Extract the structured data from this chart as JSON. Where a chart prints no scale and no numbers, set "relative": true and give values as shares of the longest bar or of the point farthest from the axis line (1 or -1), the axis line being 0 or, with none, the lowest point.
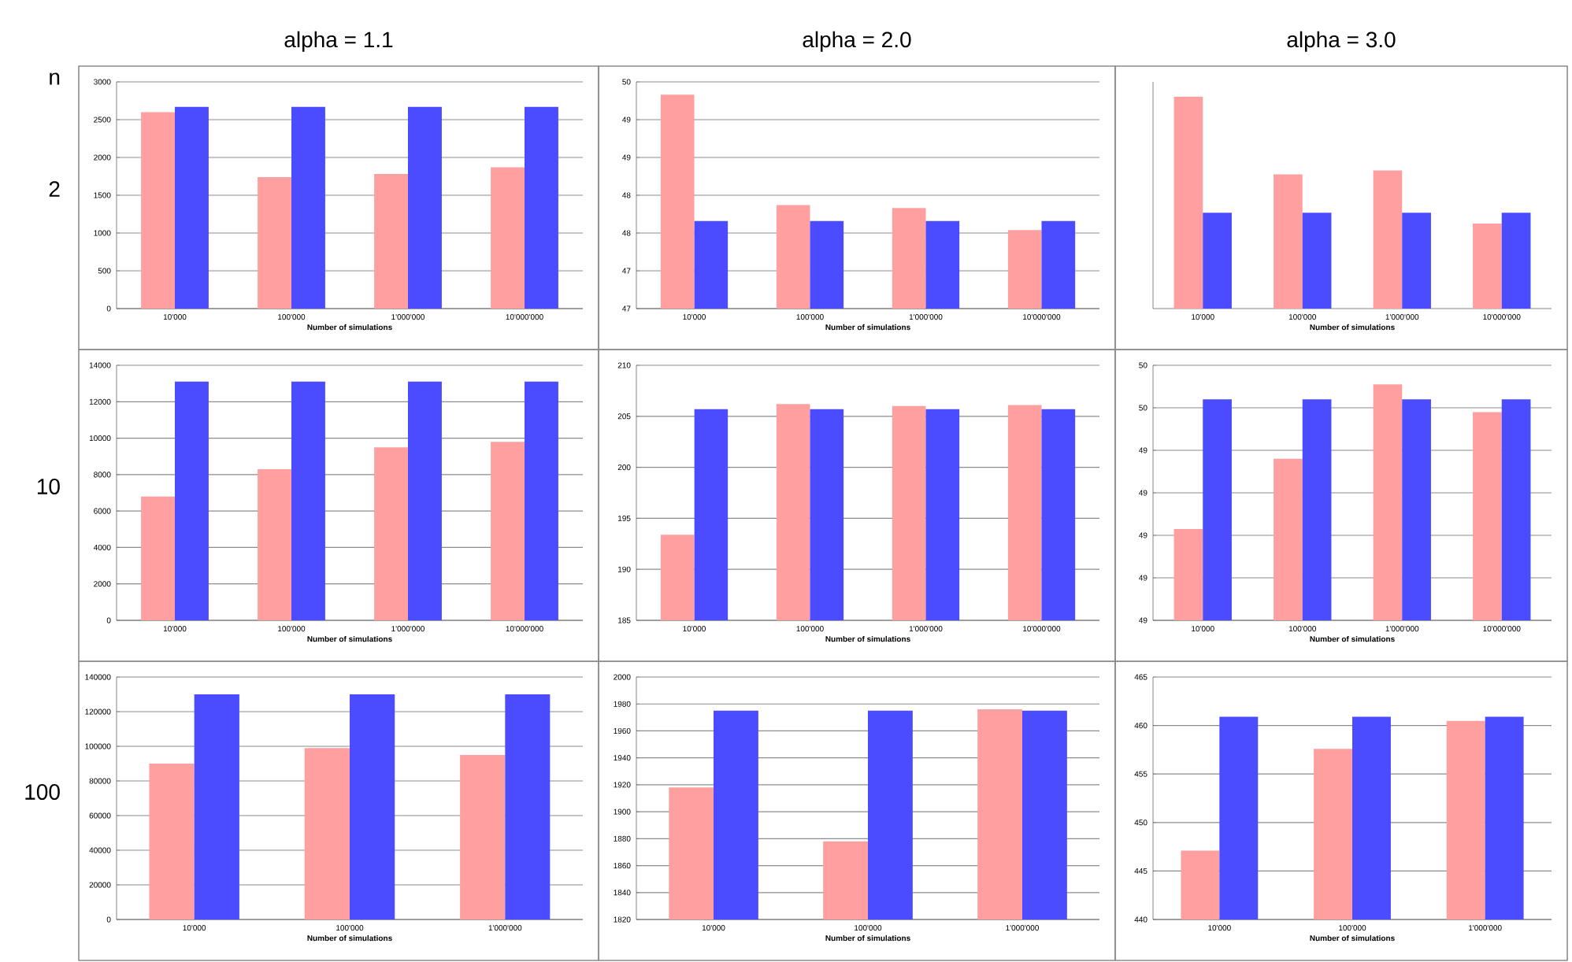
{
  "chart_data": [
    {
      "type": "bar",
      "title": "alpha = 1.1",
      "annotations": [
        "n",
        "2"
      ],
      "xlabel": "Number of simulations",
      "categories": [
        "10'000",
        "100'000",
        "1'000'000",
        "10'000'000"
      ],
      "grid": "y",
      "series": [
        {
          "color": "#ff9f9f",
          "values": [
            2600,
            1740,
            1780,
            1870
          ]
        },
        {
          "color": "#4b4bff",
          "values": [
            2670,
            2670,
            2670,
            2670
          ]
        }
      ],
      "ylim": [
        0,
        3000
      ],
      "yticks": [
        0,
        500,
        1000,
        1500,
        2000,
        2500,
        3000
      ]
    },
    {
      "type": "bar",
      "title": "alpha = 2.0",
      "xlabel": "Number of simulations",
      "categories": [
        "10'000",
        "100'000",
        "1'000'000",
        "10'000'000"
      ],
      "grid": "y",
      "series": [
        {
          "color": "#ff9f9f",
          "values": [
            49.83,
            48.37,
            48.33,
            48.04
          ]
        },
        {
          "color": "#4b4bff",
          "values": [
            48.16,
            48.16,
            48.16,
            48.16
          ]
        }
      ],
      "ylim": [
        47,
        50
      ],
      "yticks": [
        47,
        {
          "value": 47.5,
          "label": "47"
        },
        48,
        {
          "value": 48.5,
          "label": "48"
        },
        49,
        {
          "value": 49.5,
          "label": "49"
        },
        50
      ]
    },
    {
      "type": "bar",
      "title": "alpha = 3.0",
      "xlabel": "Number of simulations",
      "categories": [
        "10'000",
        "100'000",
        "1'000'000",
        "10'000'000"
      ],
      "relative": true,
      "series": [
        {
          "color": "#ff9f9f",
          "values": [
            1,
            0.633,
            0.652,
            0.401
          ]
        },
        {
          "color": "#4b4bff",
          "values": [
            0.452,
            0.452,
            0.452,
            0.452
          ]
        }
      ]
    },
    {
      "type": "bar",
      "annotations": [
        "10"
      ],
      "xlabel": "Number of simulations",
      "categories": [
        "10'000",
        "100'000",
        "1'000'000",
        "10'000'000"
      ],
      "grid": "y",
      "series": [
        {
          "color": "#ff9f9f",
          "values": [
            6800,
            8300,
            9500,
            9800
          ]
        },
        {
          "color": "#4b4bff",
          "values": [
            13100,
            13100,
            13100,
            13100
          ]
        }
      ],
      "ylim": [
        0,
        14000
      ],
      "yticks": [
        0,
        2000,
        4000,
        6000,
        8000,
        10000,
        12000,
        14000
      ]
    },
    {
      "type": "bar",
      "xlabel": "Number of simulations",
      "categories": [
        "10'000",
        "100'000",
        "1'000'000",
        "10'000'000"
      ],
      "grid": "y",
      "series": [
        {
          "color": "#ff9f9f",
          "values": [
            193.4,
            206.2,
            206.0,
            206.1
          ]
        },
        {
          "color": "#4b4bff",
          "values": [
            205.7,
            205.7,
            205.7,
            205.7
          ]
        }
      ],
      "ylim": [
        185,
        210
      ],
      "yticks": [
        185,
        190,
        195,
        200,
        205,
        210
      ]
    },
    {
      "type": "bar",
      "xlabel": "Number of simulations",
      "categories": [
        "10'000",
        "100'000",
        "1'000'000",
        "10'000'000"
      ],
      "grid": "y",
      "series": [
        {
          "color": "#ff9f9f",
          "values": [
            49.03,
            49.36,
            49.71,
            49.58
          ]
        },
        {
          "color": "#4b4bff",
          "values": [
            49.64,
            49.64,
            49.64,
            49.64
          ]
        }
      ],
      "ylim": [
        48.6,
        49.8
      ],
      "yticks": [
        {
          "value": 48.6,
          "label": "49"
        },
        {
          "value": 48.8,
          "label": "49"
        },
        49,
        {
          "value": 49.2,
          "label": "49"
        },
        {
          "value": 49.4,
          "label": "49"
        },
        {
          "value": 49.6,
          "label": "50"
        },
        {
          "value": 49.8,
          "label": "50"
        }
      ]
    },
    {
      "type": "bar",
      "annotations": [
        "100"
      ],
      "xlabel": "Number of simulations",
      "categories": [
        "10'000",
        "100'000",
        "1'000'000"
      ],
      "grid": "y",
      "series": [
        {
          "color": "#ff9f9f",
          "values": [
            90000,
            99000,
            95000
          ]
        },
        {
          "color": "#4b4bff",
          "values": [
            130000,
            130000,
            130000
          ]
        }
      ],
      "ylim": [
        0,
        140000
      ],
      "yticks": [
        0,
        20000,
        40000,
        60000,
        80000,
        100000,
        120000,
        140000
      ]
    },
    {
      "type": "bar",
      "xlabel": "Number of simulations",
      "categories": [
        "10'000",
        "100'000",
        "1'000'000"
      ],
      "grid": "y",
      "series": [
        {
          "color": "#ff9f9f",
          "values": [
            1918,
            1878,
            1976
          ]
        },
        {
          "color": "#4b4bff",
          "values": [
            1975,
            1975,
            1975
          ]
        }
      ],
      "ylim": [
        1820,
        2000
      ],
      "yticks": [
        1820,
        1840,
        1860,
        1880,
        1900,
        1920,
        1940,
        1960,
        1980,
        2000
      ]
    },
    {
      "type": "bar",
      "xlabel": "Number of simulations",
      "categories": [
        "10'000",
        "100'000",
        "1'000'000"
      ],
      "grid": "y",
      "series": [
        {
          "color": "#ff9f9f",
          "values": [
            447.1,
            457.6,
            460.5
          ]
        },
        {
          "color": "#4b4bff",
          "values": [
            460.9,
            460.9,
            460.9
          ]
        }
      ],
      "ylim": [
        440,
        465
      ],
      "yticks": [
        440,
        445,
        450,
        455,
        460,
        465
      ]
    }
  ]
}
